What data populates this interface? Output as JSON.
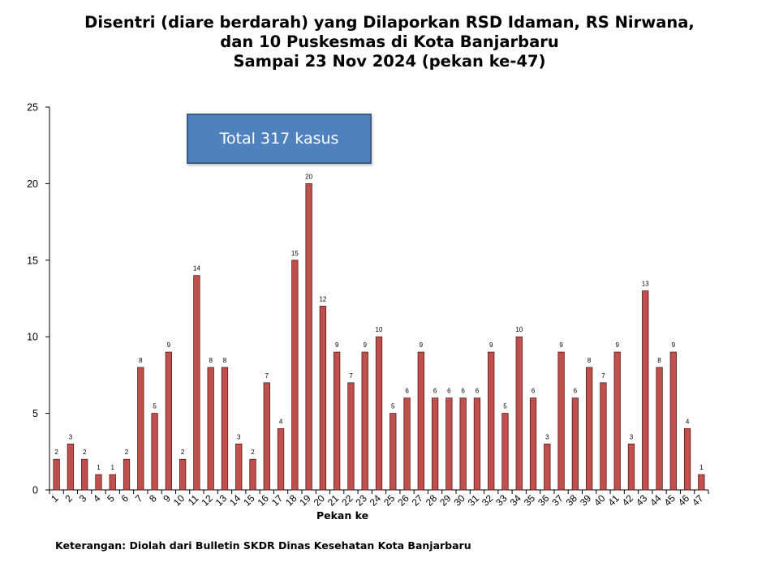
{
  "title_lines": [
    "Disentri (diare berdarah) yang Dilaporkan RSD Idaman, RS Nirwana,",
    "dan 10 Puskesmas di Kota Banjarbaru",
    "Sampai 23 Nov 2024 (pekan ke-47)"
  ],
  "annotation": "Total 317 kasus",
  "footnote": "Keterangan: Diolah dari Bulletin SKDR Dinas Kesehatan Kota Banjarbaru",
  "colors": {
    "bar_fill": "#c0504d",
    "bar_stroke": "#5a1a18",
    "box_fill": "#4f81bd"
  },
  "chart_data": {
    "type": "bar",
    "title": "Disentri (diare berdarah) yang Dilaporkan RSD Idaman, RS Nirwana, dan 10 Puskesmas di Kota Banjarbaru Sampai 23 Nov 2024 (pekan ke-47)",
    "xlabel": "Pekan ke",
    "ylabel": "",
    "ylim": [
      0,
      25
    ],
    "yticks": [
      0,
      5,
      10,
      15,
      20,
      25
    ],
    "categories": [
      "1",
      "2",
      "3",
      "4",
      "5",
      "6",
      "7",
      "8",
      "9",
      "10",
      "11",
      "12",
      "13",
      "14",
      "15",
      "16",
      "17",
      "18",
      "19",
      "20",
      "21",
      "22",
      "23",
      "24",
      "25",
      "26",
      "27",
      "28",
      "29",
      "30",
      "31",
      "32",
      "33",
      "34",
      "35",
      "36",
      "37",
      "38",
      "39",
      "40",
      "41",
      "42",
      "43",
      "44",
      "45",
      "46",
      "47"
    ],
    "values": [
      2,
      3,
      2,
      1,
      1,
      2,
      8,
      5,
      9,
      2,
      14,
      8,
      8,
      3,
      2,
      7,
      4,
      15,
      20,
      12,
      9,
      7,
      9,
      10,
      5,
      6,
      9,
      6,
      6,
      6,
      6,
      9,
      5,
      10,
      6,
      3,
      9,
      6,
      8,
      7,
      9,
      3,
      13,
      8,
      9,
      4,
      1
    ],
    "data_labels": true,
    "grid": false,
    "legend": "none"
  }
}
